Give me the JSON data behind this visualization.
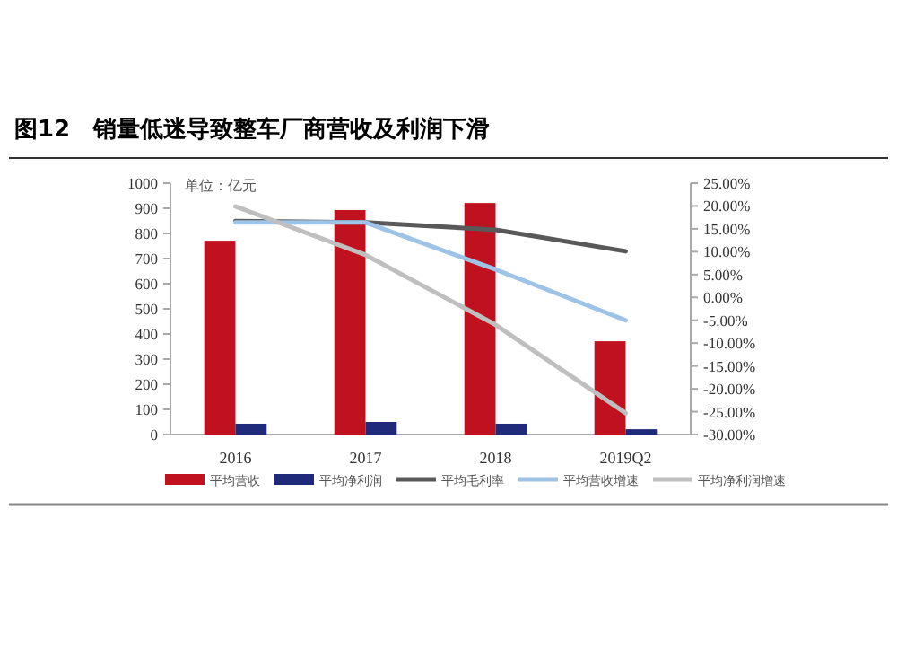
{
  "chart_data": {
    "type": "bar",
    "title": "图12　销量低迷导致整车厂商营收及利润下滑",
    "annotations": [
      "单位：亿元"
    ],
    "categories": [
      "2016",
      "2017",
      "2018",
      "2019Q2"
    ],
    "series": [
      {
        "name": "平均营收",
        "color": "#c0111f",
        "values": [
          771,
          893,
          921,
          371
        ]
      },
      {
        "name": "平均净利润",
        "color": "#1f2a7a",
        "values": [
          43,
          50,
          43,
          21
        ]
      },
      {
        "name": "平均毛利率",
        "type": "line",
        "axis": "y2",
        "color": "#595959",
        "values": [
          16.7,
          16.4,
          14.8,
          10.1
        ]
      },
      {
        "name": "平均营收增速",
        "type": "line",
        "axis": "y2",
        "color": "#9dc3e6",
        "values": [
          16.4,
          16.4,
          6.1,
          -5
        ]
      },
      {
        "name": "平均净利润增速",
        "type": "line",
        "axis": "y2",
        "color": "#bfbfbf",
        "values": [
          19.9,
          9.3,
          -6,
          -25.3
        ]
      }
    ],
    "ylim": [
      0,
      1000
    ],
    "yticks": [
      0,
      100,
      200,
      300,
      400,
      500,
      600,
      700,
      800,
      900,
      1000
    ],
    "y2lim": [
      -30,
      25
    ],
    "y2ticks": [
      {
        "value": -30,
        "label": "-30.00%"
      },
      {
        "value": -25,
        "label": "-25.00%"
      },
      {
        "value": -20,
        "label": "-20.00%"
      },
      {
        "value": -15,
        "label": "-15.00%"
      },
      {
        "value": -10,
        "label": "-10.00%"
      },
      {
        "value": -5,
        "label": "-5.00%"
      },
      {
        "value": 0,
        "label": "0.00%"
      },
      {
        "value": 5,
        "label": "5.00%"
      },
      {
        "value": 10,
        "label": "10.00%"
      },
      {
        "value": 15,
        "label": "15.00%"
      },
      {
        "value": 20,
        "label": "20.00%"
      },
      {
        "value": 25,
        "label": "25.00%"
      }
    ],
    "legend": "bottom",
    "marker": "none",
    "line_style": "solid"
  }
}
